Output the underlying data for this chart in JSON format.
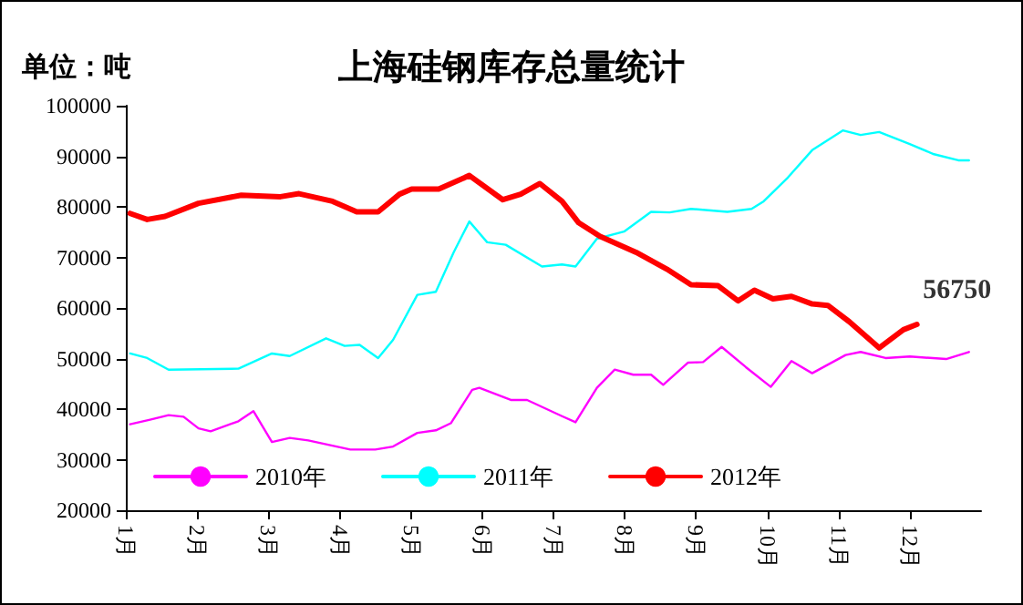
{
  "chart_data": {
    "type": "line",
    "title": "上海硅钢库存总量统计",
    "ylabel": "单位：吨",
    "xlim": [
      1,
      13
    ],
    "xticks": [
      {
        "value": 1,
        "label": "1月"
      },
      {
        "value": 2,
        "label": "2月"
      },
      {
        "value": 3,
        "label": "3月"
      },
      {
        "value": 4,
        "label": "4月"
      },
      {
        "value": 5,
        "label": "5月"
      },
      {
        "value": 6,
        "label": "6月"
      },
      {
        "value": 7,
        "label": "7月"
      },
      {
        "value": 8,
        "label": "8月"
      },
      {
        "value": 9,
        "label": "9月"
      },
      {
        "value": 10,
        "label": "10月"
      },
      {
        "value": 11,
        "label": "11月"
      },
      {
        "value": 12,
        "label": "12月"
      }
    ],
    "ylim": [
      20000,
      100000
    ],
    "yticks": [
      20000,
      30000,
      40000,
      50000,
      60000,
      70000,
      80000,
      90000,
      100000
    ],
    "grid": false,
    "legend": "bottom left",
    "marker": "none",
    "line_style": "solid",
    "annotations": [
      {
        "text": "56750",
        "x": 12.1,
        "y": 56750
      }
    ],
    "series": [
      {
        "name": "2010年",
        "color": "#ff00ff",
        "x": [
          1.06,
          1.34,
          1.6,
          1.81,
          2.02,
          2.19,
          2.58,
          2.79,
          3.05,
          3.3,
          3.56,
          4.15,
          4.5,
          4.75,
          5.09,
          5.35,
          5.56,
          5.86,
          5.96,
          6.41,
          6.63,
          7.12,
          7.31,
          7.61,
          7.86,
          8.12,
          8.37,
          8.54,
          8.89,
          9.1,
          9.36,
          9.7,
          10.05,
          10.34,
          10.63,
          11.1,
          11.31,
          11.66,
          12.0,
          12.51,
          12.83
        ],
        "values": [
          37000,
          37900,
          38800,
          38500,
          36200,
          35600,
          37600,
          39600,
          33500,
          34300,
          33800,
          32000,
          32000,
          32600,
          35300,
          35800,
          37200,
          43800,
          44200,
          41800,
          41800,
          38600,
          37400,
          44200,
          47800,
          46800,
          46800,
          44800,
          49200,
          49300,
          52300,
          48300,
          44400,
          49500,
          47100,
          50700,
          51300,
          50100,
          50400,
          49900,
          51300
        ]
      },
      {
        "name": "2011年",
        "color": "#00ffff",
        "x": [
          1.06,
          1.3,
          1.6,
          2.58,
          3.05,
          3.3,
          3.81,
          4.07,
          4.28,
          4.54,
          4.75,
          5.09,
          5.35,
          5.6,
          5.82,
          6.07,
          6.33,
          6.84,
          7.12,
          7.31,
          7.61,
          7.99,
          8.37,
          8.63,
          8.93,
          9.44,
          9.78,
          9.95,
          10.29,
          10.63,
          11.06,
          11.31,
          11.57,
          12.0,
          12.34,
          12.68,
          12.83
        ],
        "values": [
          51000,
          50100,
          47800,
          48000,
          51000,
          50500,
          54000,
          52500,
          52700,
          50100,
          53700,
          62600,
          63200,
          71000,
          77100,
          73000,
          72500,
          68200,
          68600,
          68200,
          73700,
          75100,
          79000,
          78900,
          79600,
          79000,
          79600,
          81100,
          85800,
          91200,
          95100,
          94200,
          94800,
          92400,
          90400,
          89200,
          89200
        ]
      },
      {
        "name": "2012年",
        "color": "#ff0000",
        "x": [
          1.06,
          1.3,
          1.55,
          2.02,
          2.62,
          3.17,
          3.43,
          3.9,
          4.24,
          4.54,
          4.84,
          5.01,
          5.39,
          5.82,
          6.29,
          6.54,
          6.81,
          7.12,
          7.35,
          7.65,
          8.16,
          8.59,
          8.93,
          9.31,
          9.59,
          9.82,
          10.08,
          10.34,
          10.63,
          10.85,
          11.15,
          11.57,
          11.91,
          12.1
        ],
        "values": [
          78700,
          77500,
          78100,
          80700,
          82300,
          82000,
          82600,
          81100,
          79000,
          79000,
          82500,
          83500,
          83500,
          86200,
          81400,
          82500,
          84600,
          81100,
          76900,
          74200,
          71000,
          67700,
          64600,
          64400,
          61400,
          63500,
          61800,
          62300,
          60800,
          60500,
          57300,
          52100,
          55700,
          56750
        ]
      }
    ]
  }
}
